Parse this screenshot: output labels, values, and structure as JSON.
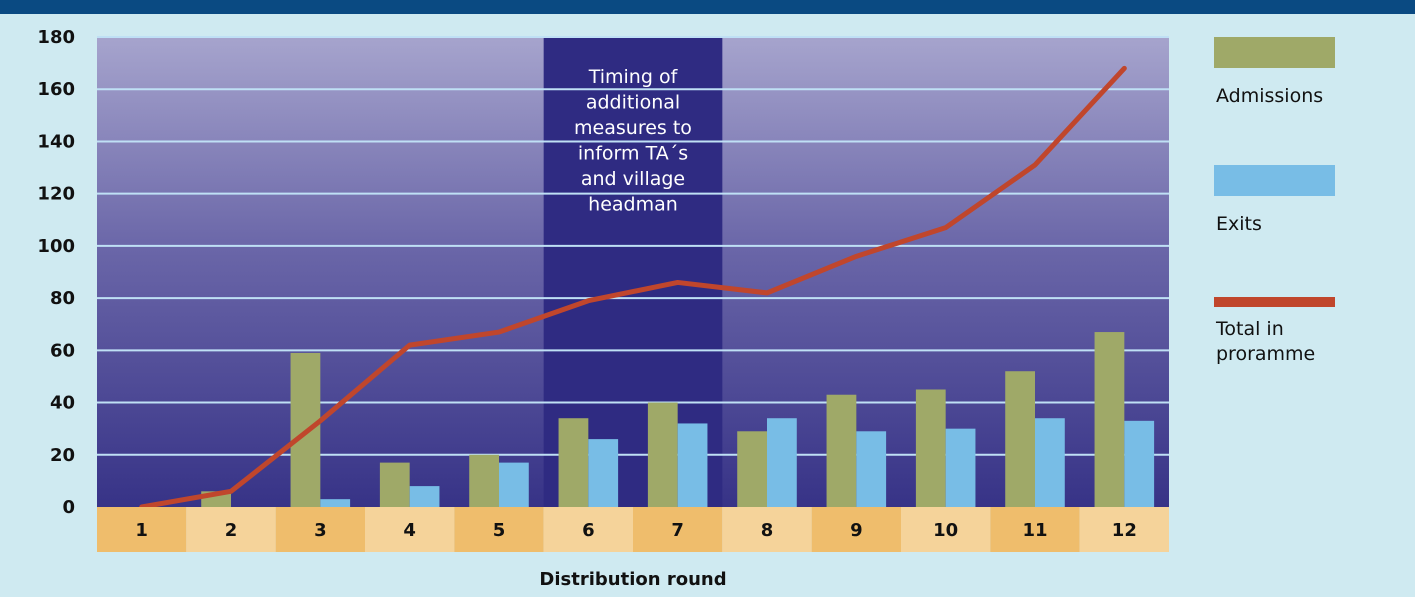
{
  "chart_data": {
    "type": "bar",
    "xlabel": "Distribution round",
    "categories": [
      "1",
      "2",
      "3",
      "4",
      "5",
      "6",
      "7",
      "8",
      "9",
      "10",
      "11",
      "12"
    ],
    "series": [
      {
        "name": "Admissions",
        "kind": "bar",
        "color": "#9fa968",
        "values": [
          0,
          6,
          59,
          17,
          20,
          34,
          40,
          29,
          43,
          45,
          52,
          67
        ]
      },
      {
        "name": "Exits",
        "kind": "bar",
        "color": "#78bde6",
        "values": [
          0,
          0,
          3,
          8,
          17,
          26,
          32,
          34,
          29,
          30,
          34,
          33
        ]
      },
      {
        "name": "Total in\nproramme",
        "kind": "line",
        "color": "#c0462c",
        "values": [
          0,
          6,
          33,
          62,
          67,
          79,
          86,
          82,
          96,
          107,
          131,
          168
        ]
      }
    ],
    "ylim": [
      0,
      180
    ],
    "yticks": [
      0,
      20,
      40,
      60,
      80,
      100,
      120,
      140,
      160,
      180
    ],
    "grid": true,
    "legend_position": "right",
    "annotation": {
      "text": "Timing of\nadditional\nmeasures to\ninform TA´s\nand village\nheadman",
      "from_category": "6",
      "to_category": "7"
    }
  }
}
